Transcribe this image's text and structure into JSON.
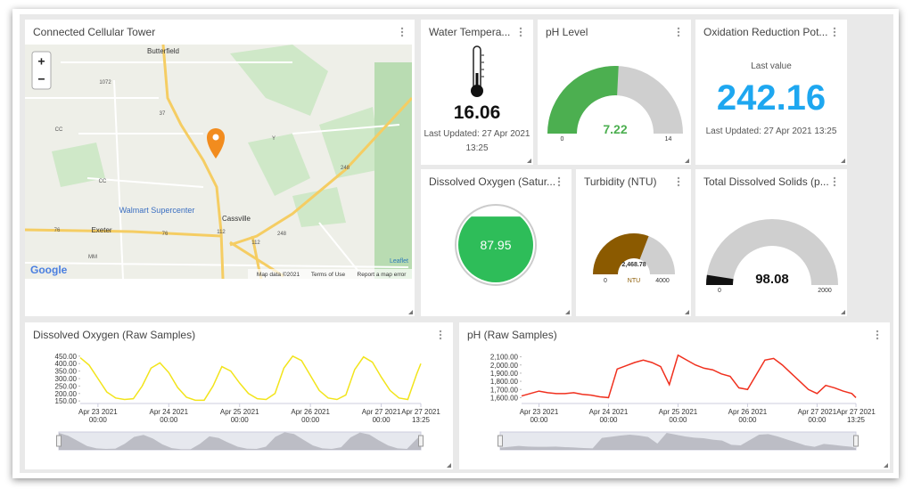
{
  "map": {
    "title": "Connected Cellular Tower",
    "zoom_in": "+",
    "zoom_out": "−",
    "places": [
      "Butterfield",
      "Walmart Supercenter",
      "Cassville",
      "Exeter"
    ],
    "shields": [
      "1072",
      "37",
      "CC",
      "Y",
      "248",
      "CC",
      "76",
      "76",
      "112",
      "112",
      "248",
      "MM"
    ],
    "logo": "Google",
    "attribution": [
      "Leaflet",
      "Map data ©2021",
      "Terms of Use",
      "Report a map error"
    ]
  },
  "water_temperature": {
    "title": "Water Tempera...",
    "value": 16.06,
    "last_updated": "Last Updated: 27 Apr 2021 13:25"
  },
  "ph_level": {
    "type": "gauge",
    "title": "pH Level",
    "value": 7.22,
    "min": 0,
    "max": 14,
    "color": "#4caf50"
  },
  "orp": {
    "title": "Oxidation Reduction Pot...",
    "caption": "Last value",
    "value": 242.16,
    "last_updated": "Last Updated: 27 Apr 2021 13:25"
  },
  "dissolved_oxygen_saturation": {
    "type": "level",
    "title": "Dissolved Oxygen (Satur...",
    "value": 87.95,
    "ylim": [
      0,
      100
    ],
    "color": "#2ebd59"
  },
  "turbidity": {
    "type": "gauge",
    "title": "Turbidity (NTU)",
    "value": 2468.78,
    "value_label": "2,468.78",
    "unit": "NTU",
    "min": 0,
    "max": 4000,
    "color": "#8b5a00"
  },
  "total_dissolved_solids": {
    "type": "gauge",
    "title": "Total Dissolved Solids (p...",
    "value": 98.08,
    "min": 0,
    "max": 2000,
    "color": "#111111"
  },
  "chart_data": [
    {
      "type": "line",
      "title": "Dissolved Oxygen (Raw Samples)",
      "color": "#f2e41b",
      "x": [
        "2021-04-22 18:00",
        "2021-04-22 21:00",
        "2021-04-23 00:00",
        "2021-04-23 03:00",
        "2021-04-23 06:00",
        "2021-04-23 09:00",
        "2021-04-23 12:00",
        "2021-04-23 15:00",
        "2021-04-23 18:00",
        "2021-04-23 21:00",
        "2021-04-24 00:00",
        "2021-04-24 03:00",
        "2021-04-24 06:00",
        "2021-04-24 09:00",
        "2021-04-24 12:00",
        "2021-04-24 15:00",
        "2021-04-24 18:00",
        "2021-04-24 21:00",
        "2021-04-25 00:00",
        "2021-04-25 03:00",
        "2021-04-25 06:00",
        "2021-04-25 09:00",
        "2021-04-25 12:00",
        "2021-04-25 15:00",
        "2021-04-25 18:00",
        "2021-04-25 21:00",
        "2021-04-26 00:00",
        "2021-04-26 03:00",
        "2021-04-26 06:00",
        "2021-04-26 09:00",
        "2021-04-26 12:00",
        "2021-04-26 15:00",
        "2021-04-26 18:00",
        "2021-04-26 21:00",
        "2021-04-27 00:00",
        "2021-04-27 03:00",
        "2021-04-27 06:00",
        "2021-04-27 09:00",
        "2021-04-27 12:00",
        "2021-04-27 13:25"
      ],
      "values": [
        440,
        390,
        300,
        210,
        170,
        160,
        165,
        250,
        370,
        405,
        340,
        240,
        175,
        155,
        155,
        250,
        380,
        350,
        270,
        200,
        165,
        160,
        200,
        370,
        450,
        420,
        320,
        220,
        170,
        160,
        190,
        360,
        445,
        410,
        310,
        220,
        170,
        160,
        330,
        400
      ],
      "xlim": [
        "2021-04-22 18:00",
        "2021-04-27 13:25"
      ],
      "xticks": [
        {
          "value": "2021-04-23 00:00",
          "label": "Apr 23 2021\n00:00"
        },
        {
          "value": "2021-04-24 00:00",
          "label": "Apr 24 2021\n00:00"
        },
        {
          "value": "2021-04-25 00:00",
          "label": "Apr 25 2021\n00:00"
        },
        {
          "value": "2021-04-26 00:00",
          "label": "Apr 26 2021\n00:00"
        },
        {
          "value": "2021-04-27 00:00",
          "label": "Apr 27 2021\n00:00"
        },
        {
          "value": "2021-04-27 13:25",
          "label": "Apr 27 2021\n13:25"
        }
      ],
      "ylim": [
        145,
        455
      ],
      "yticks": [
        {
          "value": 150,
          "label": "150.00"
        },
        {
          "value": 200,
          "label": "200.00"
        },
        {
          "value": 250,
          "label": "250.00"
        },
        {
          "value": 300,
          "label": "300.00"
        },
        {
          "value": 350,
          "label": "350.00"
        },
        {
          "value": 400,
          "label": "400.00"
        },
        {
          "value": 450,
          "label": "450.00"
        }
      ]
    },
    {
      "type": "line",
      "title": "pH (Raw Samples)",
      "color": "#f0301e",
      "x": [
        "2021-04-22 18:00",
        "2021-04-22 21:00",
        "2021-04-23 00:00",
        "2021-04-23 03:00",
        "2021-04-23 06:00",
        "2021-04-23 09:00",
        "2021-04-23 12:00",
        "2021-04-23 15:00",
        "2021-04-23 18:00",
        "2021-04-23 21:00",
        "2021-04-24 00:00",
        "2021-04-24 03:00",
        "2021-04-24 06:00",
        "2021-04-24 09:00",
        "2021-04-24 12:00",
        "2021-04-24 15:00",
        "2021-04-24 18:00",
        "2021-04-24 21:00",
        "2021-04-25 00:00",
        "2021-04-25 03:00",
        "2021-04-25 06:00",
        "2021-04-25 09:00",
        "2021-04-25 12:00",
        "2021-04-25 15:00",
        "2021-04-25 18:00",
        "2021-04-25 21:00",
        "2021-04-26 00:00",
        "2021-04-26 03:00",
        "2021-04-26 06:00",
        "2021-04-26 09:00",
        "2021-04-26 12:00",
        "2021-04-26 15:00",
        "2021-04-26 18:00",
        "2021-04-26 21:00",
        "2021-04-27 00:00",
        "2021-04-27 03:00",
        "2021-04-27 06:00",
        "2021-04-27 09:00",
        "2021-04-27 12:00",
        "2021-04-27 13:25"
      ],
      "values": [
        1620,
        1650,
        1680,
        1660,
        1650,
        1650,
        1660,
        1640,
        1630,
        1610,
        1600,
        1950,
        1990,
        2030,
        2060,
        2030,
        1980,
        1760,
        2120,
        2060,
        2000,
        1960,
        1940,
        1890,
        1860,
        1720,
        1700,
        1880,
        2060,
        2080,
        2000,
        1900,
        1800,
        1700,
        1650,
        1750,
        1720,
        1680,
        1650,
        1600
      ],
      "xlim": [
        "2021-04-22 18:00",
        "2021-04-27 13:25"
      ],
      "xticks": [
        {
          "value": "2021-04-23 00:00",
          "label": "Apr 23 2021\n00:00"
        },
        {
          "value": "2021-04-24 00:00",
          "label": "Apr 24 2021\n00:00"
        },
        {
          "value": "2021-04-25 00:00",
          "label": "Apr 25 2021\n00:00"
        },
        {
          "value": "2021-04-26 00:00",
          "label": "Apr 26 2021\n00:00"
        },
        {
          "value": "2021-04-27 00:00",
          "label": "Apr 27 2021\n00:00"
        },
        {
          "value": "2021-04-27 13:25",
          "label": "Apr 27 2021\n13:25"
        }
      ],
      "ylim": [
        1550,
        2150
      ],
      "yticks": [
        {
          "value": 1600,
          "label": "1,600.00"
        },
        {
          "value": 1700,
          "label": "1,700.00"
        },
        {
          "value": 1800,
          "label": "1,800.00"
        },
        {
          "value": 1900,
          "label": "1,900.00"
        },
        {
          "value": 2000,
          "label": "2,000.00"
        },
        {
          "value": 2100,
          "label": "2,100.00"
        }
      ]
    }
  ]
}
